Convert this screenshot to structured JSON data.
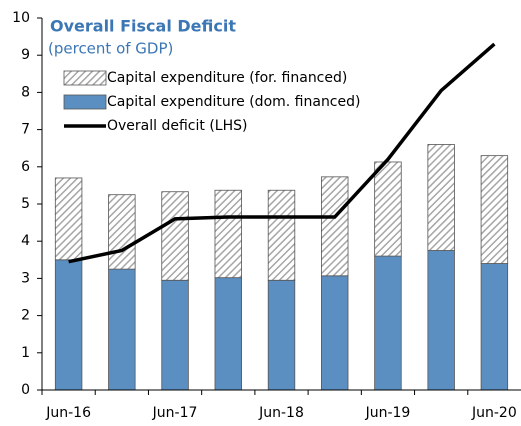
{
  "chart_data": {
    "type": "bar-line",
    "title": "Overall Fiscal Deficit",
    "subtitle": "(percent of GDP)",
    "categories": [
      "Jun-16",
      null,
      "Jun-17",
      null,
      "Jun-18",
      null,
      "Jun-19",
      null,
      "Jun-20"
    ],
    "series": [
      {
        "name": "Capital expenditure (dom. financed)",
        "type": "bar",
        "color": "#5b8fc2",
        "values": [
          3.5,
          3.25,
          2.95,
          3.02,
          2.95,
          3.07,
          3.6,
          3.75,
          3.4
        ]
      },
      {
        "name": "Capital expenditure (for. financed)",
        "type": "bar",
        "color": "#a6a6a6",
        "hatch": true,
        "values": [
          2.2,
          2.0,
          2.38,
          2.35,
          2.42,
          2.66,
          2.53,
          2.85,
          2.9
        ]
      },
      {
        "name": "Overall deficit (LHS)",
        "type": "line",
        "color": "#000000",
        "values": [
          3.45,
          3.75,
          4.6,
          4.65,
          4.65,
          4.65,
          6.2,
          8.05,
          9.3
        ]
      }
    ],
    "legend_order": [
      1,
      0,
      2
    ],
    "ylim": [
      0,
      10
    ],
    "yticks": [
      0,
      1,
      2,
      3,
      4,
      5,
      6,
      7,
      8,
      9,
      10
    ]
  }
}
